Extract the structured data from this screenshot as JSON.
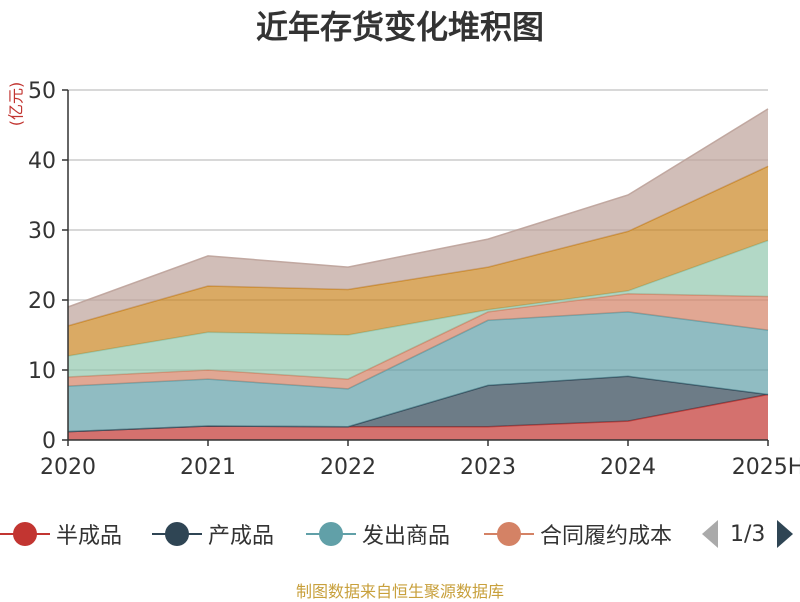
{
  "title": "近年存货变化堆积图",
  "unit": "(亿元)",
  "source": "制图数据来自恒生聚源数据库",
  "pager": "1/3",
  "legend": [
    {
      "name": "半成品",
      "color": "#c23531"
    },
    {
      "name": "产成品",
      "color": "#2f4554"
    },
    {
      "name": "发出商品",
      "color": "#61a0a8"
    },
    {
      "name": "合同履约成本",
      "color": "#d48265"
    }
  ],
  "chart_data": {
    "type": "area",
    "stacked": true,
    "title": "近年存货变化堆积图",
    "ylabel": "(亿元)",
    "categories": [
      "2020",
      "2021",
      "2022",
      "2023",
      "2024",
      "2025H"
    ],
    "ylim": [
      0,
      50
    ],
    "yticks": [
      0,
      10,
      20,
      30,
      40,
      50
    ],
    "grid": true,
    "legend_position": "bottom",
    "series": [
      {
        "name": "半成品",
        "color": "#c23531",
        "values": [
          1.2,
          2.0,
          1.9,
          1.9,
          2.7,
          6.5
        ]
      },
      {
        "name": "产成品",
        "color": "#2f4554",
        "values": [
          0.0,
          0.0,
          0.0,
          5.9,
          6.4,
          0.0
        ]
      },
      {
        "name": "发出商品",
        "color": "#61a0a8",
        "values": [
          6.5,
          6.7,
          5.4,
          9.3,
          9.2,
          9.2
        ]
      },
      {
        "name": "合同履约成本",
        "color": "#d48265",
        "values": [
          1.3,
          1.3,
          1.4,
          1.2,
          2.6,
          4.8
        ]
      },
      {
        "color": "#91c7ae",
        "values": [
          3.0,
          5.4,
          6.3,
          0.3,
          0.4,
          8.0
        ]
      },
      {
        "color": "#ca8622",
        "values": [
          4.3,
          6.6,
          6.5,
          6.1,
          8.5,
          10.6
        ]
      },
      {
        "color": "#bda29a",
        "values": [
          2.7,
          4.3,
          3.2,
          4.0,
          5.2,
          8.2
        ]
      }
    ]
  }
}
